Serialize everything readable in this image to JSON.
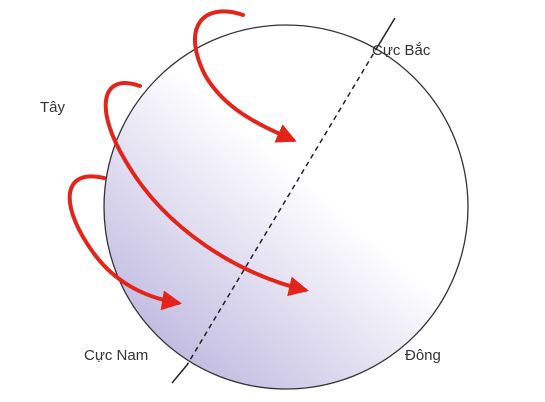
{
  "labels": {
    "north_pole": "Cực Bắc",
    "west": "Tây",
    "south_pole": "Cực Nam",
    "east": "Đông"
  }
}
